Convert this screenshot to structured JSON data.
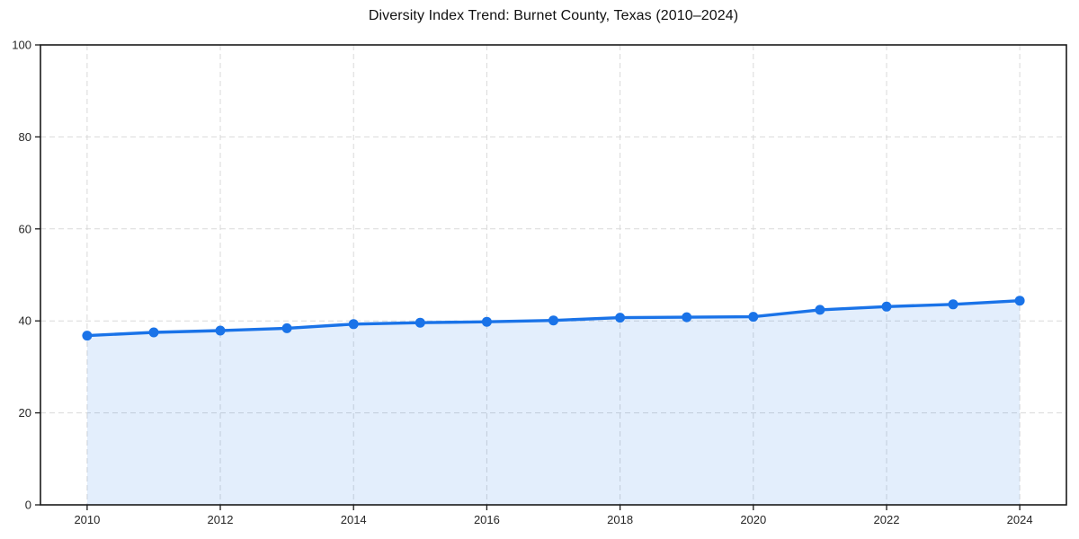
{
  "figure": {
    "background": "#ffffff"
  },
  "chart_data": {
    "type": "area",
    "title": "Diversity Index Trend: Burnet County, Texas (2010–2024)",
    "x": [
      2010,
      2011,
      2012,
      2013,
      2014,
      2015,
      2016,
      2017,
      2018,
      2019,
      2020,
      2021,
      2022,
      2023,
      2024
    ],
    "series": [
      {
        "name": "Diversity Index",
        "values": [
          36.8,
          37.5,
          37.9,
          38.4,
          39.3,
          39.6,
          39.8,
          40.1,
          40.7,
          40.8,
          40.9,
          42.4,
          43.1,
          43.6,
          44.4
        ]
      }
    ],
    "xlabel": "",
    "ylabel": "",
    "xlim": [
      2009.3,
      2024.7
    ],
    "ylim": [
      0,
      100
    ],
    "xticks": [
      2010,
      2012,
      2014,
      2016,
      2018,
      2020,
      2022,
      2024
    ],
    "yticks": [
      0,
      20,
      40,
      60,
      80,
      100
    ],
    "grid": true,
    "grid_style": "dashed",
    "legend": "none",
    "marker": "circle",
    "line_width": 3.4,
    "marker_radius": 5.5,
    "colors": {
      "line": "#1a73e8",
      "marker": "#1a73e8",
      "fill": "rgba(26,115,232,0.12)",
      "grid": "#d9d9d9",
      "spine": "#1a1a1a",
      "tick_label": "#262626",
      "title": "#111111"
    }
  }
}
